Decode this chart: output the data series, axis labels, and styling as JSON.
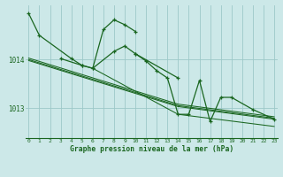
{
  "bg_color": "#cce8e8",
  "grid_color": "#9dc8c8",
  "line_color": "#1a6620",
  "xlabel": "Graphe pression niveau de la mer (hPa)",
  "xlim": [
    -0.3,
    23.3
  ],
  "ylim": [
    1012.38,
    1015.12
  ],
  "yticks": [
    1013,
    1014
  ],
  "xticks": [
    0,
    1,
    2,
    3,
    4,
    5,
    6,
    7,
    8,
    9,
    10,
    11,
    12,
    13,
    14,
    15,
    16,
    17,
    18,
    19,
    20,
    21,
    22,
    23
  ],
  "curve1_x": [
    0,
    1,
    4,
    5,
    6,
    8,
    9,
    10,
    14
  ],
  "curve1_y": [
    1014.95,
    1014.5,
    1014.02,
    1013.88,
    1013.82,
    1014.17,
    1014.28,
    1014.12,
    1013.62
  ],
  "curve2_x": [
    3,
    5,
    6,
    7,
    8,
    9,
    10
  ],
  "curve2_y": [
    1014.02,
    1013.88,
    1013.82,
    1014.62,
    1014.82,
    1014.72,
    1014.58
  ],
  "curve3_x": [
    10,
    11,
    12,
    13,
    14,
    15,
    16,
    17,
    18,
    19,
    21,
    23
  ],
  "curve3_y": [
    1014.12,
    1013.97,
    1013.77,
    1013.62,
    1012.87,
    1012.87,
    1013.57,
    1012.72,
    1013.22,
    1013.22,
    1012.97,
    1012.77
  ],
  "trend_lines": [
    {
      "x": [
        0,
        14,
        23
      ],
      "y": [
        1014.03,
        1013.08,
        1012.82
      ]
    },
    {
      "x": [
        0,
        14,
        23
      ],
      "y": [
        1014.0,
        1013.05,
        1012.79
      ]
    },
    {
      "x": [
        0,
        14,
        23
      ],
      "y": [
        1013.98,
        1013.03,
        1012.77
      ]
    },
    {
      "x": [
        6,
        14,
        23
      ],
      "y": [
        1013.82,
        1012.87,
        1012.62
      ]
    }
  ]
}
